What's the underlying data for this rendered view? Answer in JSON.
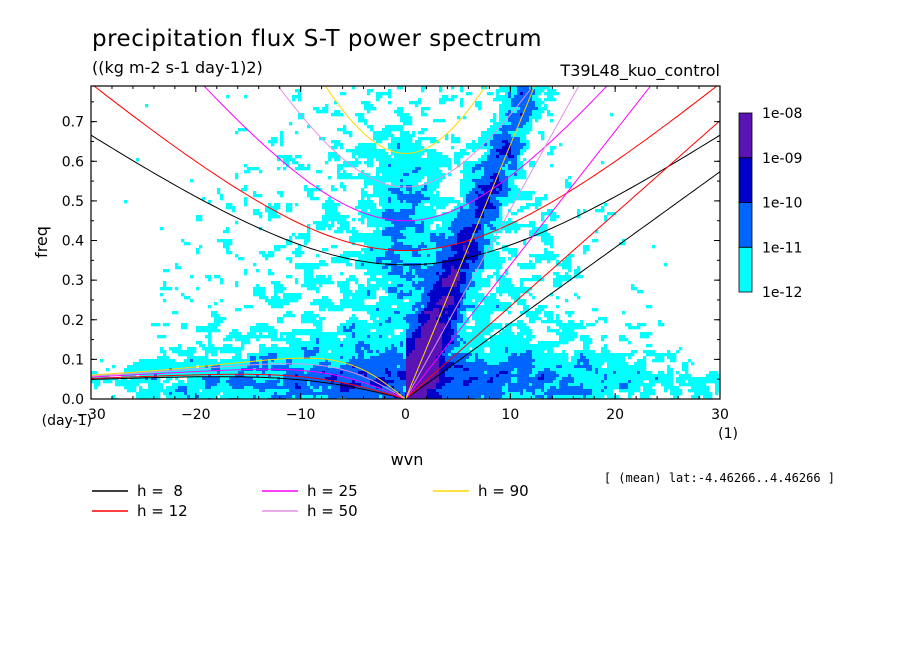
{
  "chart_data": {
    "type": "heatmap",
    "title": "precipitation flux S-T power spectrum",
    "subtitle": "((kg m-2 s-1 day-1)2)",
    "run_label": "T39L48_kuo_control",
    "xlabel": "wvn",
    "ylabel": "freq",
    "x_unit": "(1)",
    "y_unit": "(day-1)",
    "xlim": [
      -30,
      30
    ],
    "ylim": [
      0,
      0.79
    ],
    "x_ticks": [
      -30,
      -20,
      -10,
      0,
      10,
      20,
      30
    ],
    "y_ticks": [
      0.0,
      0.1,
      0.2,
      0.3,
      0.4,
      0.5,
      0.6,
      0.7
    ],
    "x_tick_labels": [
      "−30",
      "−20",
      "−10",
      "0",
      "10",
      "20",
      "30"
    ],
    "y_tick_labels": [
      "0.0",
      "0.1",
      "0.2",
      "0.3",
      "0.4",
      "0.5",
      "0.6",
      "0.7"
    ],
    "colorbar": {
      "levels": [
        "1e-12",
        "1e-11",
        "1e-10",
        "1e-09",
        "1e-08"
      ],
      "colors": [
        "#00ffff",
        "#0064ff",
        "#0000c8",
        "#5a14b4"
      ]
    },
    "annotation": "[ (mean) lat:-4.46266..4.46266 ]",
    "dispersion_curves": [
      {
        "name": "h =  8",
        "color": "#000000",
        "h": 8
      },
      {
        "name": "h = 12",
        "color": "#ff0000",
        "h": 12
      },
      {
        "name": "h = 25",
        "color": "#ff00ff",
        "h": 25
      },
      {
        "name": "h = 50",
        "color": "#e090e0",
        "h": 50
      },
      {
        "name": "h = 90",
        "color": "#ffd700",
        "h": 90
      }
    ],
    "legend_placement": "bottom",
    "grid": false
  }
}
